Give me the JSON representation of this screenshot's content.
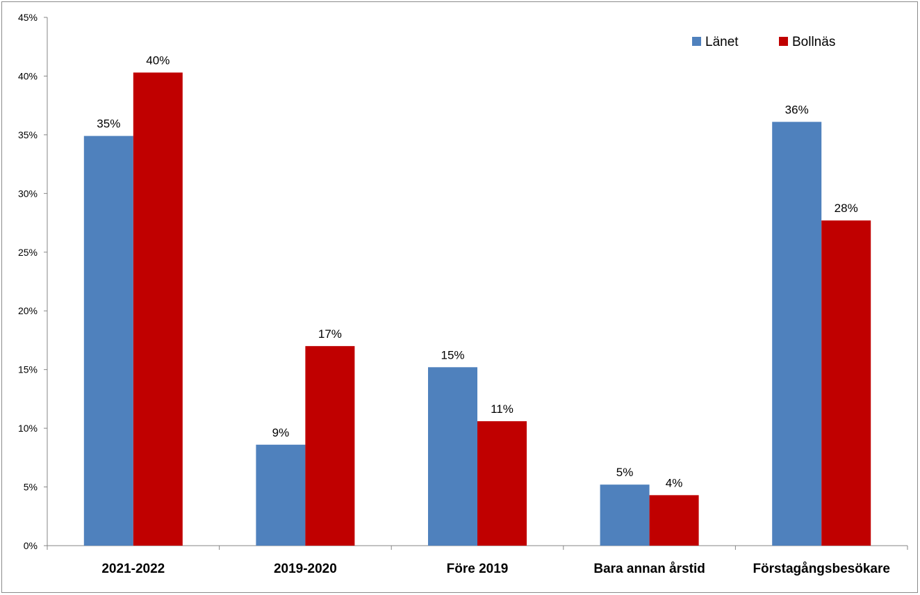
{
  "chart_data": {
    "type": "bar",
    "title": "",
    "xlabel": "",
    "ylabel": "",
    "categories": [
      "2021-2022",
      "2019-2020",
      "Före 2019",
      "Bara annan årstid",
      "Förstagångsbesökare"
    ],
    "series": [
      {
        "name": "Länet",
        "color": "#4f81bd",
        "values": [
          34.9,
          8.6,
          15.2,
          5.2,
          36.1
        ],
        "labels": [
          "35%",
          "9%",
          "15%",
          "5%",
          "36%"
        ]
      },
      {
        "name": "Bollnäs",
        "color": "#c00000",
        "values": [
          40.3,
          17.0,
          10.6,
          4.3,
          27.7
        ],
        "labels": [
          "40%",
          "17%",
          "11%",
          "4%",
          "28%"
        ]
      }
    ],
    "ylim": [
      0,
      45
    ],
    "yticks": [
      0,
      5,
      10,
      15,
      20,
      25,
      30,
      35,
      40,
      45
    ],
    "ytick_labels": [
      "0%",
      "5%",
      "10%",
      "15%",
      "20%",
      "25%",
      "30%",
      "35%",
      "40%",
      "45%"
    ],
    "grid": false,
    "legend_position": "top-right"
  }
}
